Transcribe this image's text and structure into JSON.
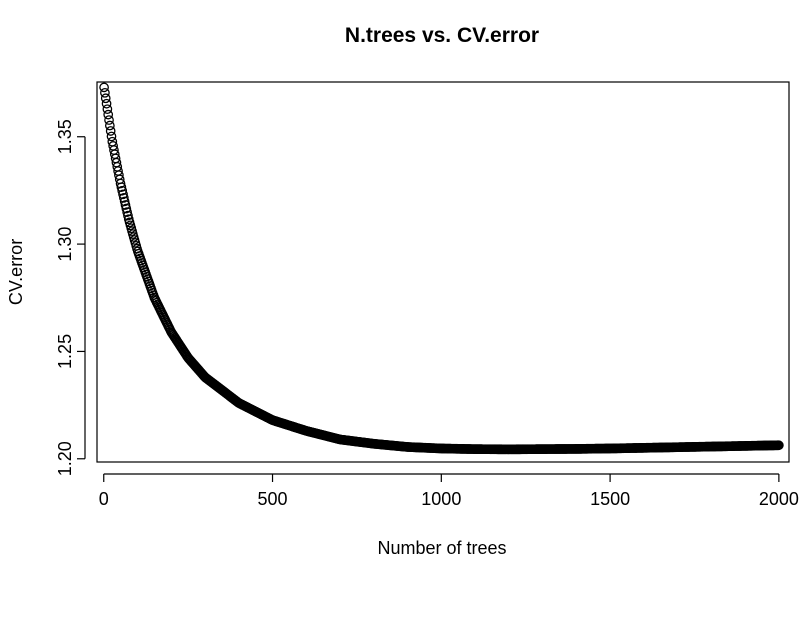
{
  "chart_data": {
    "type": "scatter",
    "title": "N.trees vs. CV.error",
    "xlabel": "Number of trees",
    "ylabel": "CV.error",
    "xlim": [
      -20,
      2030
    ],
    "ylim": [
      1.1985,
      1.3755
    ],
    "x_ticks": [
      0,
      500,
      1000,
      1500,
      2000
    ],
    "x_tick_labels": [
      "0",
      "500",
      "1000",
      "1500",
      "2000"
    ],
    "y_ticks": [
      1.2,
      1.25,
      1.3,
      1.35
    ],
    "y_tick_labels": [
      "1.20",
      "1.25",
      "1.30",
      "1.35"
    ],
    "marker": "open circle",
    "color": "#000000",
    "grid": false,
    "series": [
      {
        "x": [
          1,
          25,
          50,
          75,
          100,
          150,
          200,
          250,
          300,
          400,
          500,
          600,
          700,
          800,
          900,
          1000,
          1100,
          1200,
          1300,
          1400,
          1500,
          1600,
          1700,
          1800,
          1900,
          2000
        ],
        "y": [
          1.373,
          1.348,
          1.328,
          1.311,
          1.297,
          1.275,
          1.259,
          1.247,
          1.238,
          1.226,
          1.218,
          1.213,
          1.209,
          1.207,
          1.2055,
          1.2048,
          1.2045,
          1.2044,
          1.2045,
          1.2046,
          1.2048,
          1.2051,
          1.2054,
          1.2057,
          1.206,
          1.2063
        ]
      }
    ]
  }
}
